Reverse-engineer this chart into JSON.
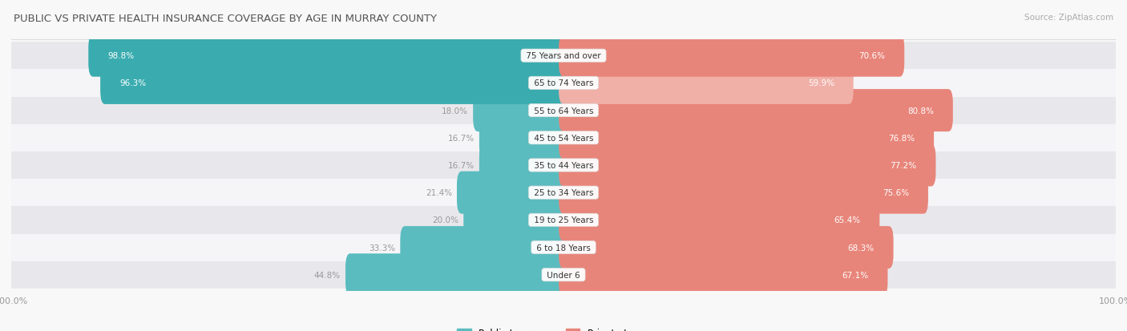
{
  "title": "PUBLIC VS PRIVATE HEALTH INSURANCE COVERAGE BY AGE IN MURRAY COUNTY",
  "source": "Source: ZipAtlas.com",
  "categories": [
    "Under 6",
    "6 to 18 Years",
    "19 to 25 Years",
    "25 to 34 Years",
    "35 to 44 Years",
    "45 to 54 Years",
    "55 to 64 Years",
    "65 to 74 Years",
    "75 Years and over"
  ],
  "public_values": [
    44.8,
    33.3,
    20.0,
    21.4,
    16.7,
    16.7,
    18.0,
    96.3,
    98.8
  ],
  "private_values": [
    67.1,
    68.3,
    65.4,
    75.6,
    77.2,
    76.8,
    80.8,
    59.9,
    70.6
  ],
  "public_color": "#5bbcbf",
  "private_color": "#e8857a",
  "public_color_strong": "#3aacaf",
  "private_color_light": "#f0b0a8",
  "row_bg_odd": "#e8e8ec",
  "row_bg_even": "#f5f5f8",
  "title_color": "#555555",
  "source_color": "#aaaaaa",
  "label_color_white": "#ffffff",
  "label_color_dark": "#999999",
  "max_val": 100.0,
  "figsize": [
    14.06,
    4.14
  ],
  "dpi": 100
}
